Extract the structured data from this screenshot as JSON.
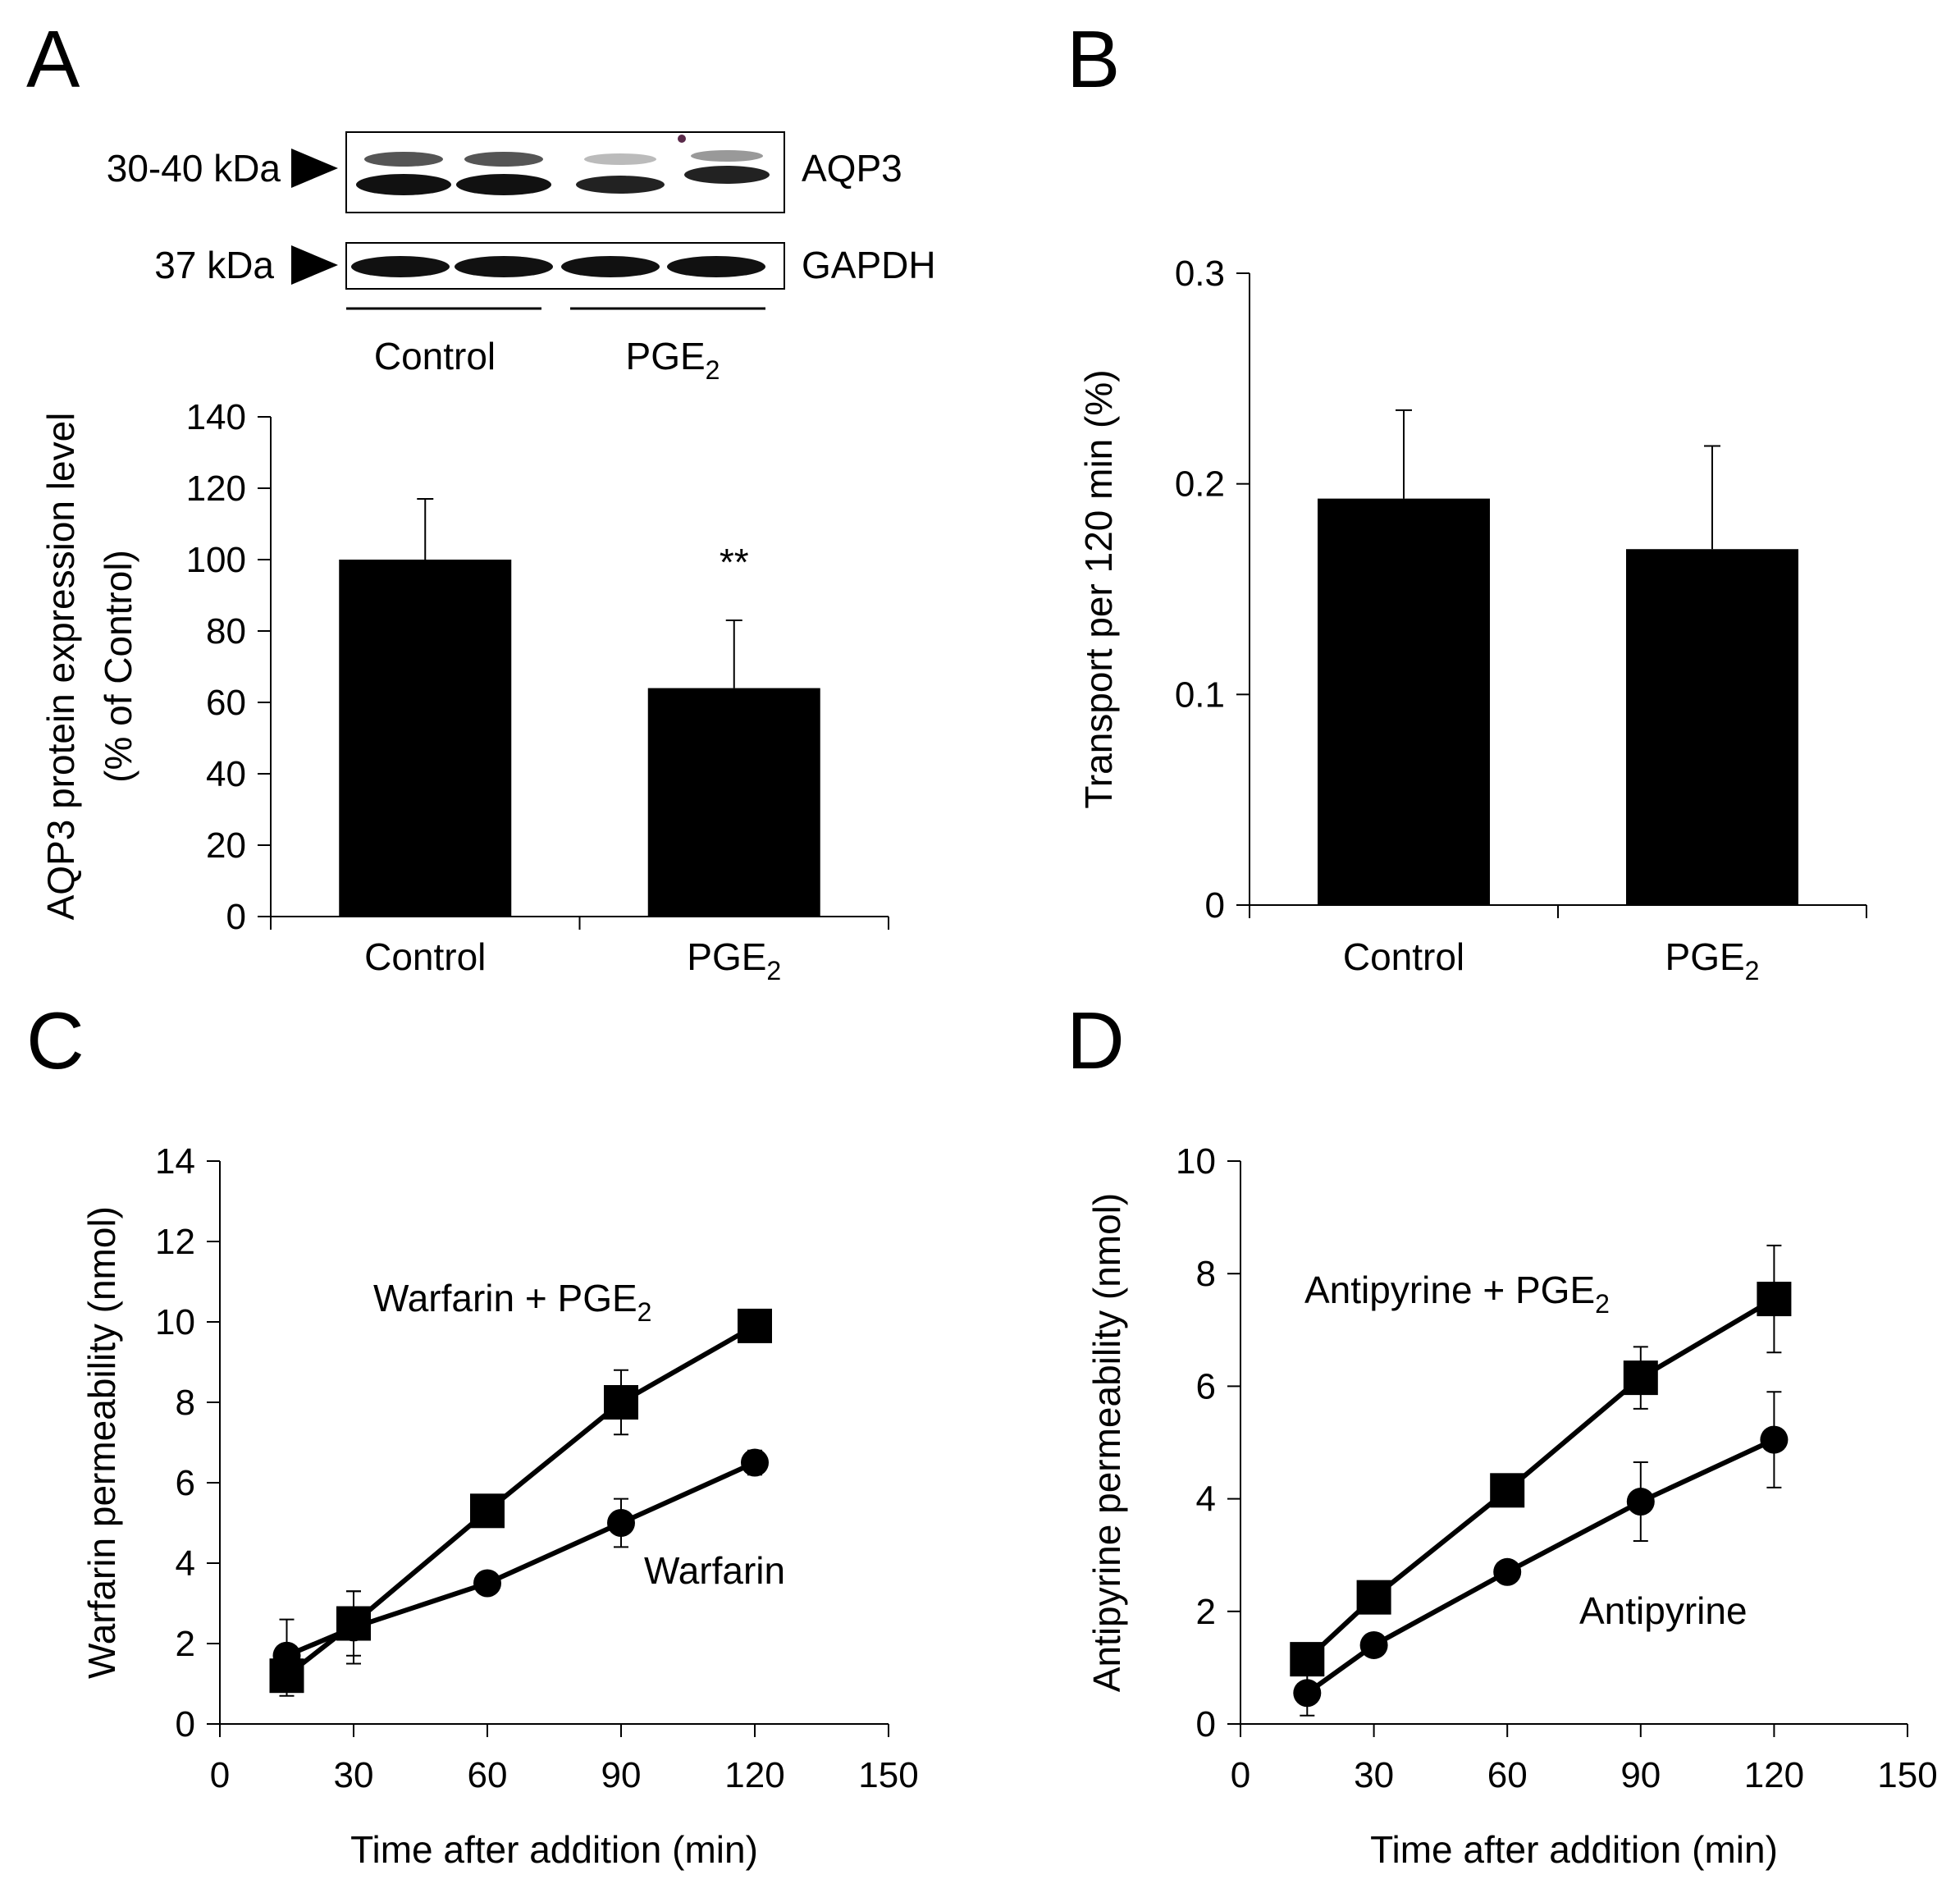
{
  "panels": {
    "A": {
      "letter": "A"
    },
    "B": {
      "letter": "B"
    },
    "C": {
      "letter": "C"
    },
    "D": {
      "letter": "D"
    }
  },
  "blot": {
    "bands": [
      {
        "marker": "30-40 kDa",
        "protein": "AQP3"
      },
      {
        "marker": "37 kDa",
        "protein": "GAPDH"
      }
    ],
    "groups": [
      {
        "label": "Control",
        "sub": ""
      },
      {
        "label": "PGE",
        "sub": "2"
      }
    ]
  },
  "colors": {
    "ink": "#000000",
    "background": "#ffffff",
    "band": "#111111"
  },
  "chart_data": [
    {
      "panel": "A",
      "type": "bar",
      "title": "",
      "categories": [
        {
          "label": "Control",
          "sub": ""
        },
        {
          "label": "PGE",
          "sub": "2"
        }
      ],
      "values": [
        100,
        64
      ],
      "errors": [
        17,
        19
      ],
      "annotations": [
        "",
        "**"
      ],
      "ylabel_lines": [
        "AQP3 protein expression level",
        "(% of Control)"
      ],
      "xlabel": "",
      "ylim": [
        0,
        140
      ],
      "yticks": [
        "0",
        "20",
        "40",
        "60",
        "80",
        "100",
        "120",
        "140"
      ]
    },
    {
      "panel": "B",
      "type": "bar",
      "title": "",
      "categories": [
        {
          "label": "Control",
          "sub": ""
        },
        {
          "label": "PGE",
          "sub": "2"
        }
      ],
      "values": [
        0.193,
        0.169
      ],
      "errors": [
        0.042,
        0.049
      ],
      "annotations": [
        "",
        ""
      ],
      "ylabel_lines": [
        "Transport per 120 min (%)"
      ],
      "xlabel": "",
      "ylim": [
        0,
        0.3
      ],
      "yticks": [
        "0",
        "0.1",
        "0.2",
        "0.3"
      ]
    },
    {
      "panel": "C",
      "type": "line",
      "title": "",
      "xlabel": "Time after addition (min)",
      "ylabel": "Warfarin permeability (nmol)",
      "xlim": [
        0,
        150
      ],
      "ylim": [
        0,
        14
      ],
      "xticks": [
        "0",
        "30",
        "60",
        "90",
        "120",
        "150"
      ],
      "yticks": [
        "0",
        "2",
        "4",
        "6",
        "8",
        "10",
        "12",
        "14"
      ],
      "series": [
        {
          "name": "Warfarin",
          "name_sub": "",
          "marker": "circle",
          "x": [
            15,
            30,
            60,
            90,
            120
          ],
          "y": [
            1.7,
            2.4,
            3.5,
            5.0,
            6.5
          ],
          "err": [
            0.9,
            0.9,
            0.1,
            0.6,
            0.3
          ]
        },
        {
          "name": "Warfarin + PGE",
          "name_sub": "2",
          "marker": "square",
          "x": [
            15,
            30,
            60,
            90,
            120
          ],
          "y": [
            1.2,
            2.5,
            5.3,
            8.0,
            9.9
          ],
          "err": [
            0.5,
            0.8,
            0.2,
            0.8,
            0.1
          ]
        }
      ]
    },
    {
      "panel": "D",
      "type": "line",
      "title": "",
      "xlabel": "Time after addition (min)",
      "ylabel": "Antipyrine permeability (nmol)",
      "xlim": [
        0,
        150
      ],
      "ylim": [
        0,
        10
      ],
      "xticks": [
        "0",
        "30",
        "60",
        "90",
        "120",
        "150"
      ],
      "yticks": [
        "0",
        "2",
        "4",
        "6",
        "8",
        "10"
      ],
      "series": [
        {
          "name": "Antipyrine",
          "name_sub": "",
          "marker": "circle",
          "x": [
            15,
            30,
            60,
            90,
            120
          ],
          "y": [
            0.55,
            1.4,
            2.7,
            3.95,
            5.05
          ],
          "err": [
            0.4,
            0.1,
            0.1,
            0.7,
            0.85
          ]
        },
        {
          "name": "Antipyrine + PGE",
          "name_sub": "2",
          "marker": "square",
          "x": [
            15,
            30,
            60,
            90,
            120
          ],
          "y": [
            1.15,
            2.25,
            4.15,
            6.15,
            7.55
          ],
          "err": [
            0.1,
            0.1,
            0.1,
            0.55,
            0.95
          ]
        }
      ]
    }
  ]
}
